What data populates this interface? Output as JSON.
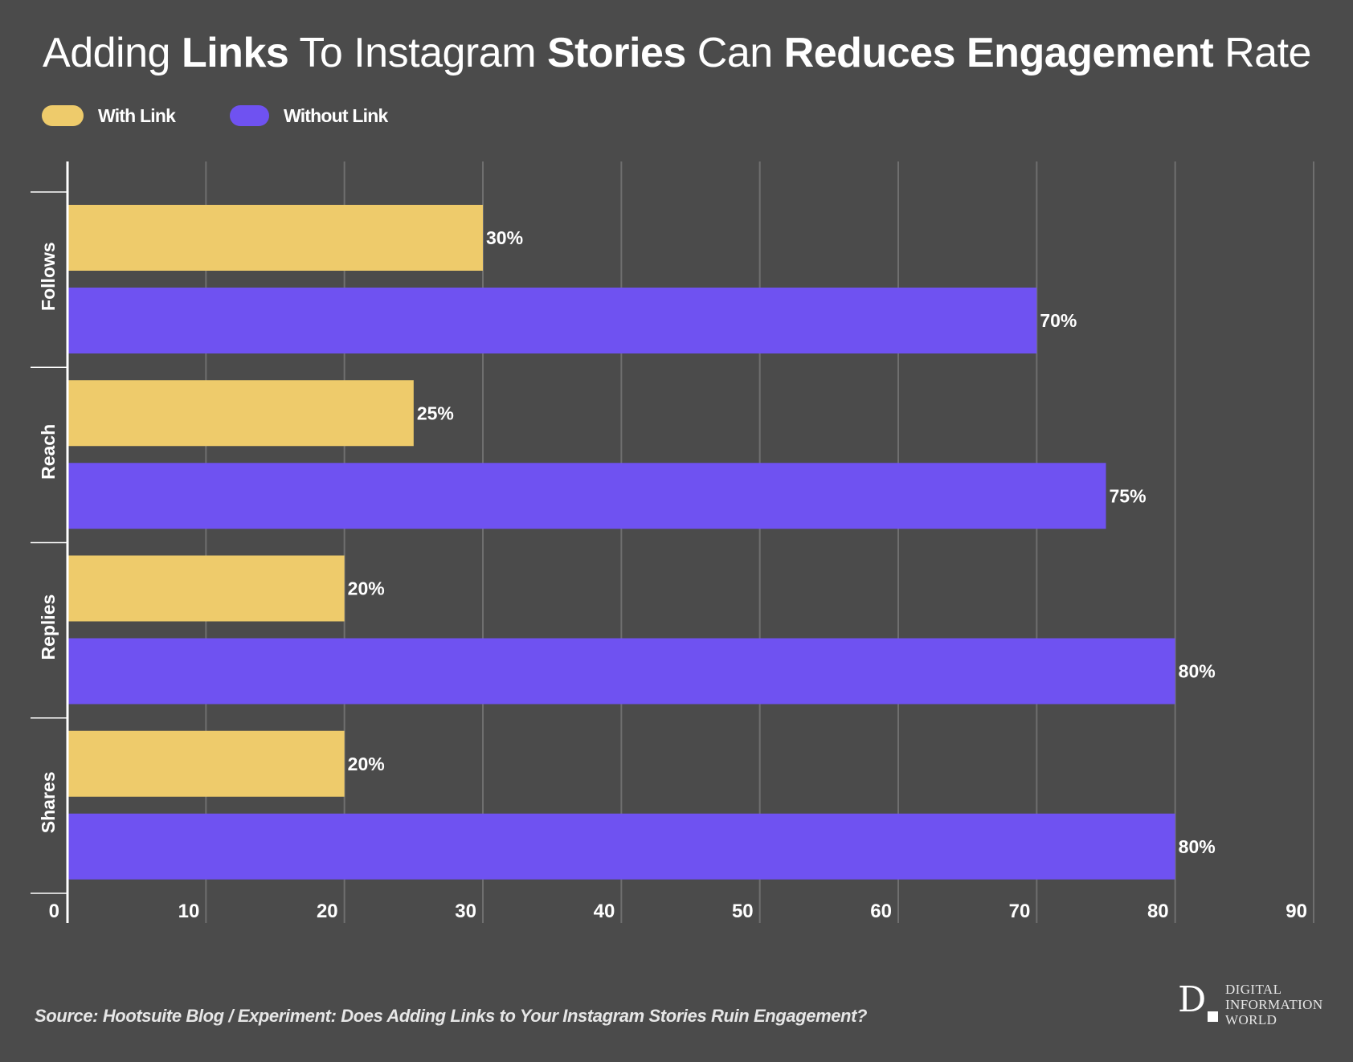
{
  "title": {
    "parts": [
      {
        "text": "Adding ",
        "bold": false
      },
      {
        "text": "Links",
        "bold": true
      },
      {
        "text": " To Instagram ",
        "bold": false
      },
      {
        "text": "Stories",
        "bold": true
      },
      {
        "text": " Can ",
        "bold": false
      },
      {
        "text": "Reduces Engagement",
        "bold": true
      },
      {
        "text": " Rate",
        "bold": false
      }
    ]
  },
  "legend": [
    {
      "label": "With Link",
      "color": "#eecb6b"
    },
    {
      "label": "Without Link",
      "color": "#6f52f1"
    }
  ],
  "chart_data": {
    "type": "bar",
    "orientation": "horizontal",
    "title": "Adding Links To Instagram Stories Can Reduces Engagement Rate",
    "categories": [
      "Follows",
      "Reach",
      "Replies",
      "Shares"
    ],
    "series": [
      {
        "name": "With Link",
        "color": "#eecb6b",
        "values": [
          30,
          25,
          20,
          20
        ],
        "labels": [
          "30%",
          "25%",
          "20%",
          "20%"
        ]
      },
      {
        "name": "Without Link",
        "color": "#6f52f1",
        "values": [
          70,
          75,
          80,
          80
        ],
        "labels": [
          "70%",
          "75%",
          "80%",
          "80%"
        ]
      }
    ],
    "xlabel": "",
    "ylabel": "",
    "xlim": [
      0,
      90
    ],
    "xticks": [
      0,
      10,
      20,
      30,
      40,
      50,
      60,
      70,
      80,
      90
    ],
    "xtick_labels": [
      "0",
      "10",
      "20",
      "30",
      "40",
      "50",
      "60",
      "70",
      "80",
      "90"
    ],
    "grid": true,
    "legend_position": "top-left"
  },
  "source": "Source:  Hootsuite Blog / Experiment: Does Adding Links to Your Instagram Stories Ruin Engagement?",
  "logo": {
    "mark": "D",
    "lines": [
      "DIGITAL",
      "INFORMATION",
      "WORLD"
    ]
  }
}
